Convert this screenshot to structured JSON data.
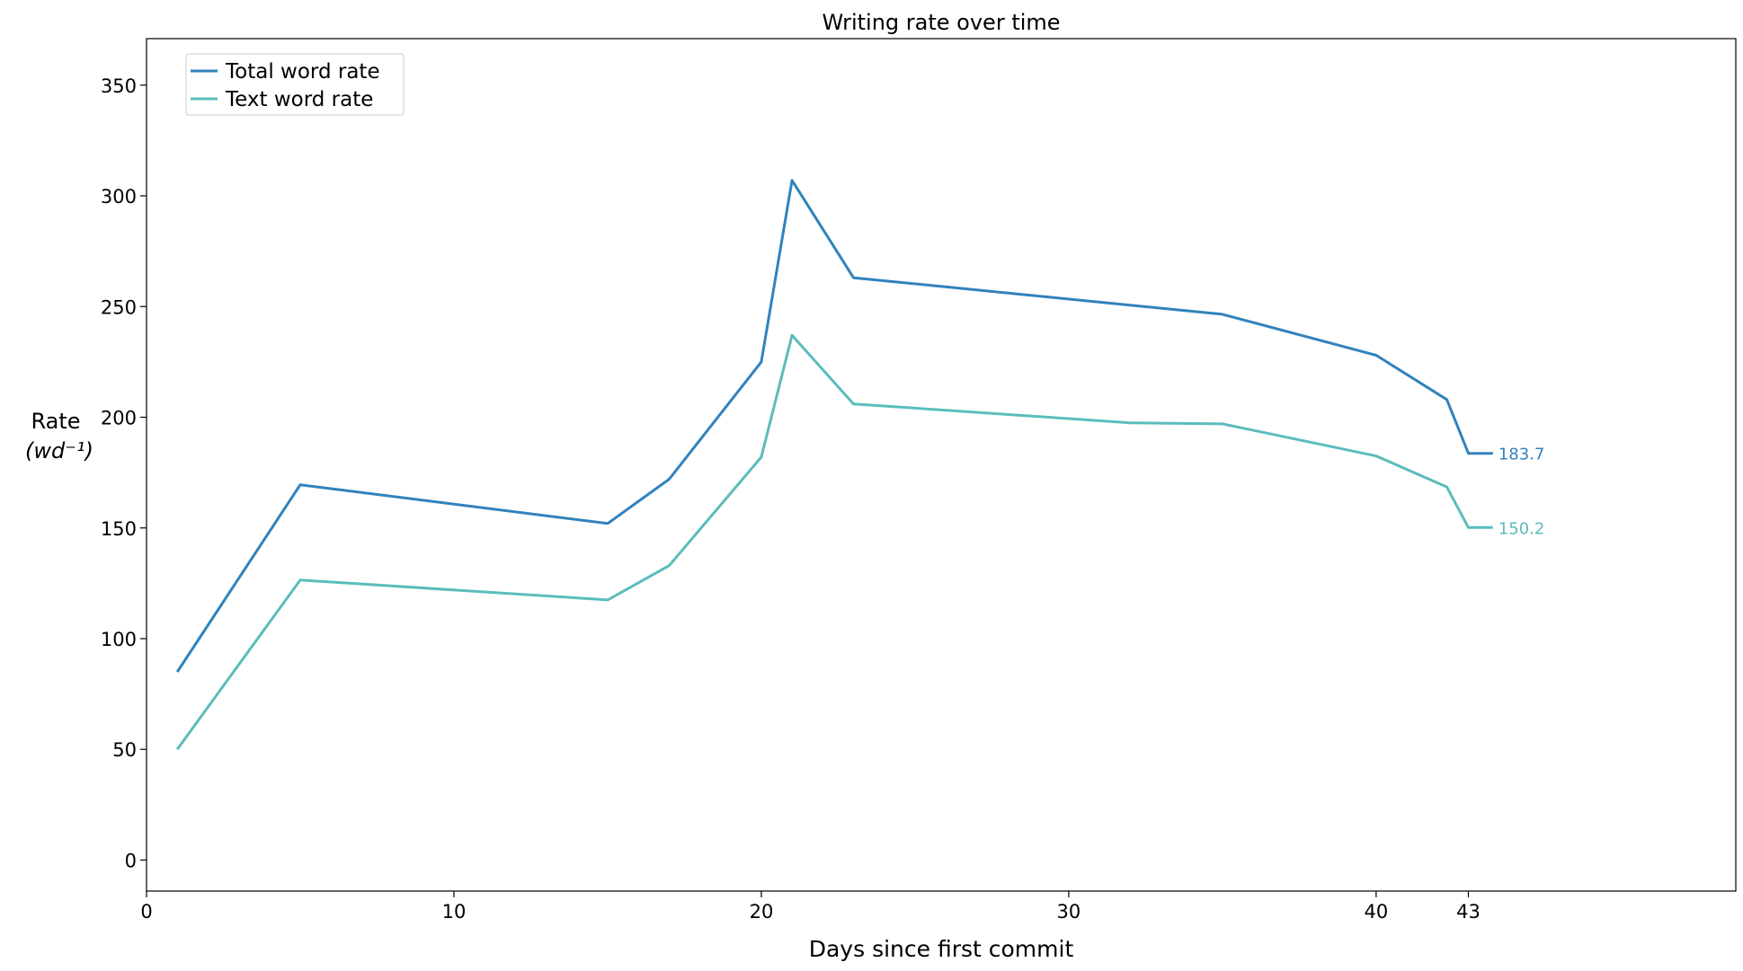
{
  "chart_data": {
    "type": "line",
    "title": "Writing rate over time",
    "xlabel": "Days since first commit",
    "ylabel_line1": "Rate",
    "ylabel_line2": "(wd⁻¹)",
    "xlim": [
      0,
      51.7
    ],
    "ylim": [
      -14,
      371
    ],
    "xticks": [
      0,
      10,
      20,
      30,
      40,
      43
    ],
    "yticks": [
      0,
      50,
      100,
      150,
      200,
      250,
      300,
      350
    ],
    "legend_position": "top-left",
    "series": [
      {
        "name": "Total word rate",
        "color": "#3182bd",
        "x": [
          1,
          5,
          15,
          17,
          20,
          21,
          23,
          35,
          40,
          42.3,
          43,
          43.8
        ],
        "y": [
          85,
          169.5,
          152,
          172,
          225,
          307,
          263,
          246.5,
          228,
          208,
          183.7,
          183.7
        ],
        "end_label": "183.7"
      },
      {
        "name": "Text word rate",
        "color": "#5bbcbc",
        "x": [
          1,
          5,
          15,
          17,
          20,
          21,
          23,
          32,
          35,
          40,
          42.3,
          43,
          43.8
        ],
        "y": [
          50,
          126.5,
          117.5,
          133,
          182,
          237,
          206,
          197.5,
          197,
          182.5,
          168.5,
          150.2,
          150.2
        ],
        "end_label": "150.2"
      }
    ]
  }
}
